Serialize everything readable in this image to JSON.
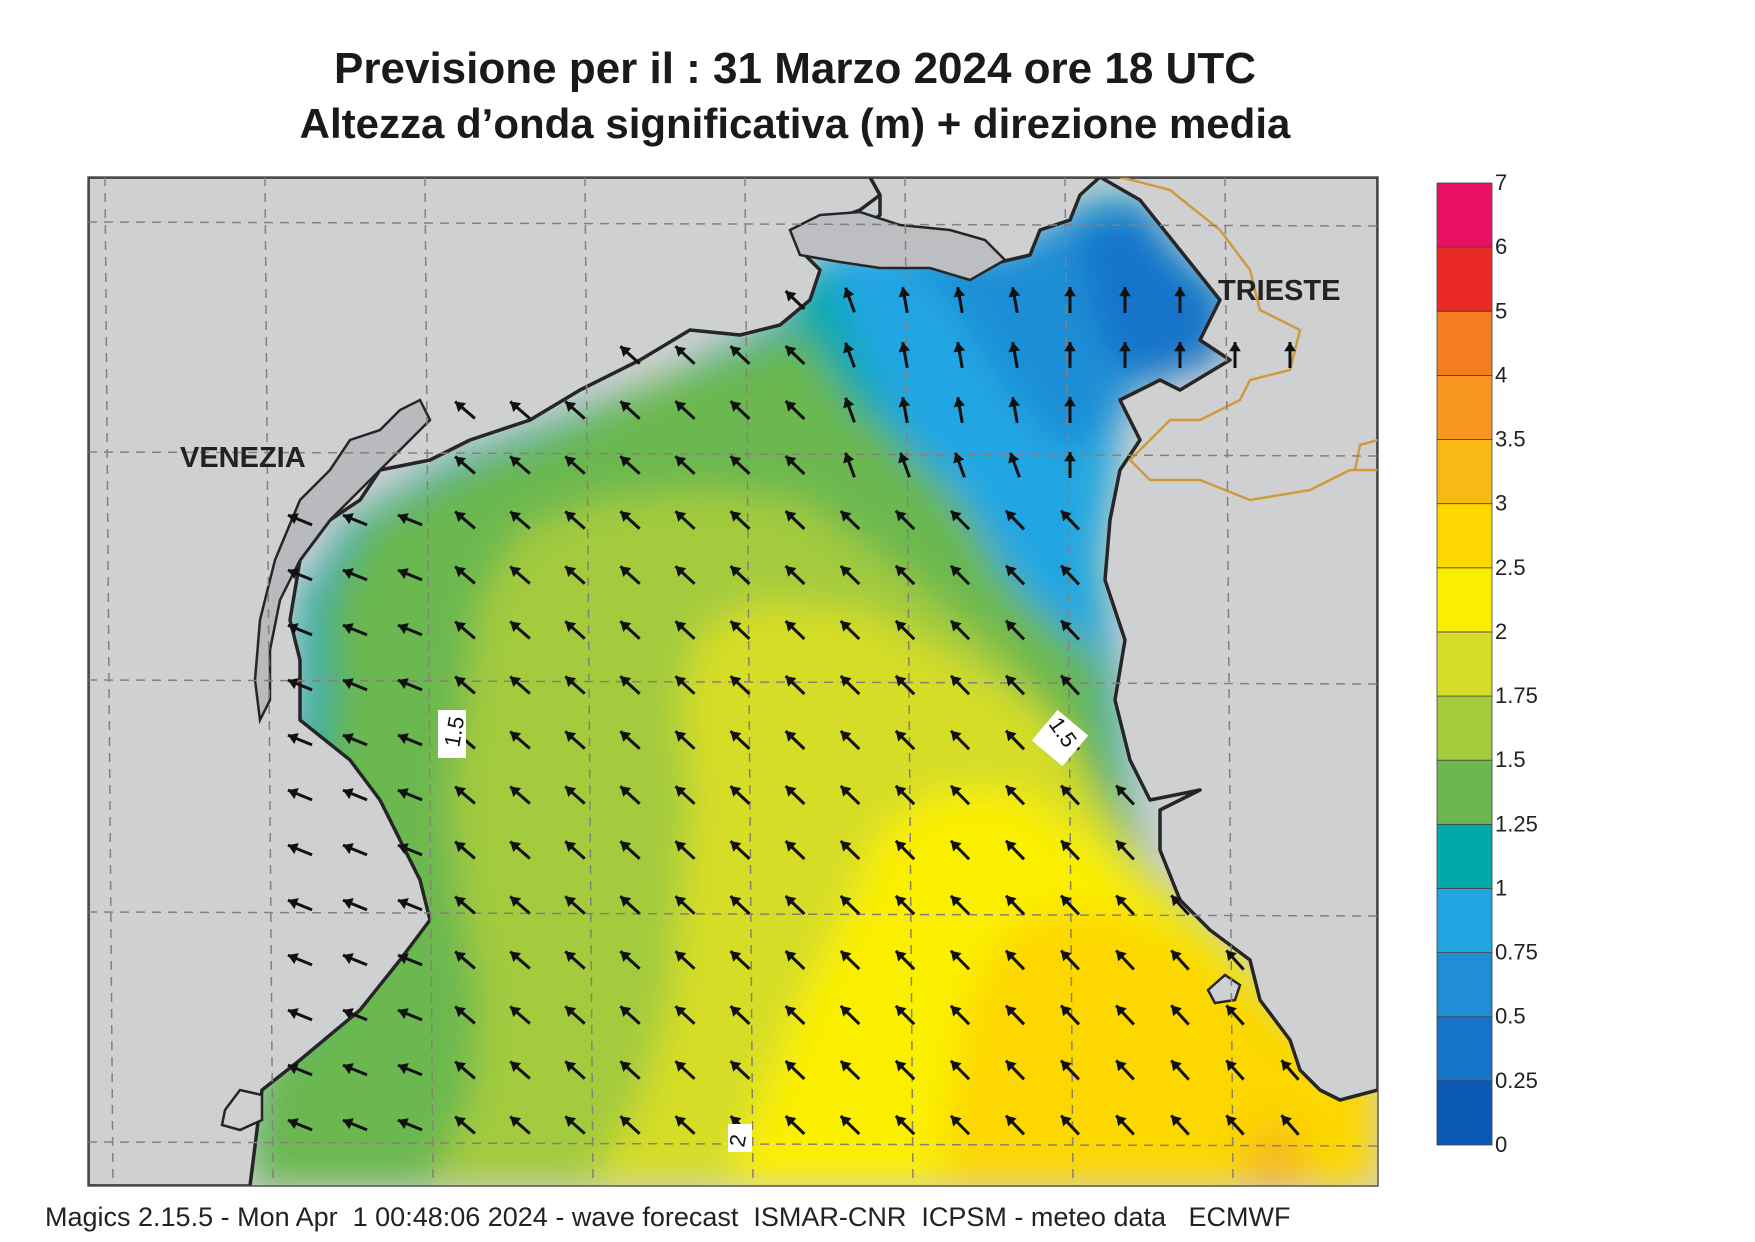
{
  "title": {
    "line1": "Previsione per il  :  31   Marzo   2024   ore 18 UTC",
    "line2": "Altezza d’onda significativa (m) + direzione media"
  },
  "footer": "Magics 2.15.5 - Mon Apr  1 00:48:06 2024 - wave forecast  ISMAR-CNR  ICPSM - meteo data   ECMWF",
  "cities": {
    "venezia": "VENEZIA",
    "trieste": "TRIESTE"
  },
  "contour_labels": {
    "west": "1.5",
    "east": "1.5",
    "south": "2"
  },
  "colorbar": {
    "labels": [
      "7",
      "6",
      "5",
      "4",
      "3.5",
      "3",
      "2.5",
      "2",
      "1.75",
      "1.5",
      "1.25",
      "1",
      "0.75",
      "0.5",
      "0.25",
      "0"
    ],
    "colors": [
      "#0b59b5",
      "#1574c9",
      "#1f8ed6",
      "#21a6e3",
      "#03a8a8",
      "#6ab84f",
      "#a3cb3c",
      "#d5dd27",
      "#fbef00",
      "#fcd700",
      "#f8b816",
      "#f79722",
      "#f47d22",
      "#ea2a25",
      "#e80f64"
    ]
  },
  "colors": {
    "land": "#cfd0d2",
    "coast": "#262626",
    "border": "#d09a3a",
    "grid": "#8a7f78",
    "arrow": "#111111"
  },
  "wave_direction": "toward north-west (from south-east)"
}
